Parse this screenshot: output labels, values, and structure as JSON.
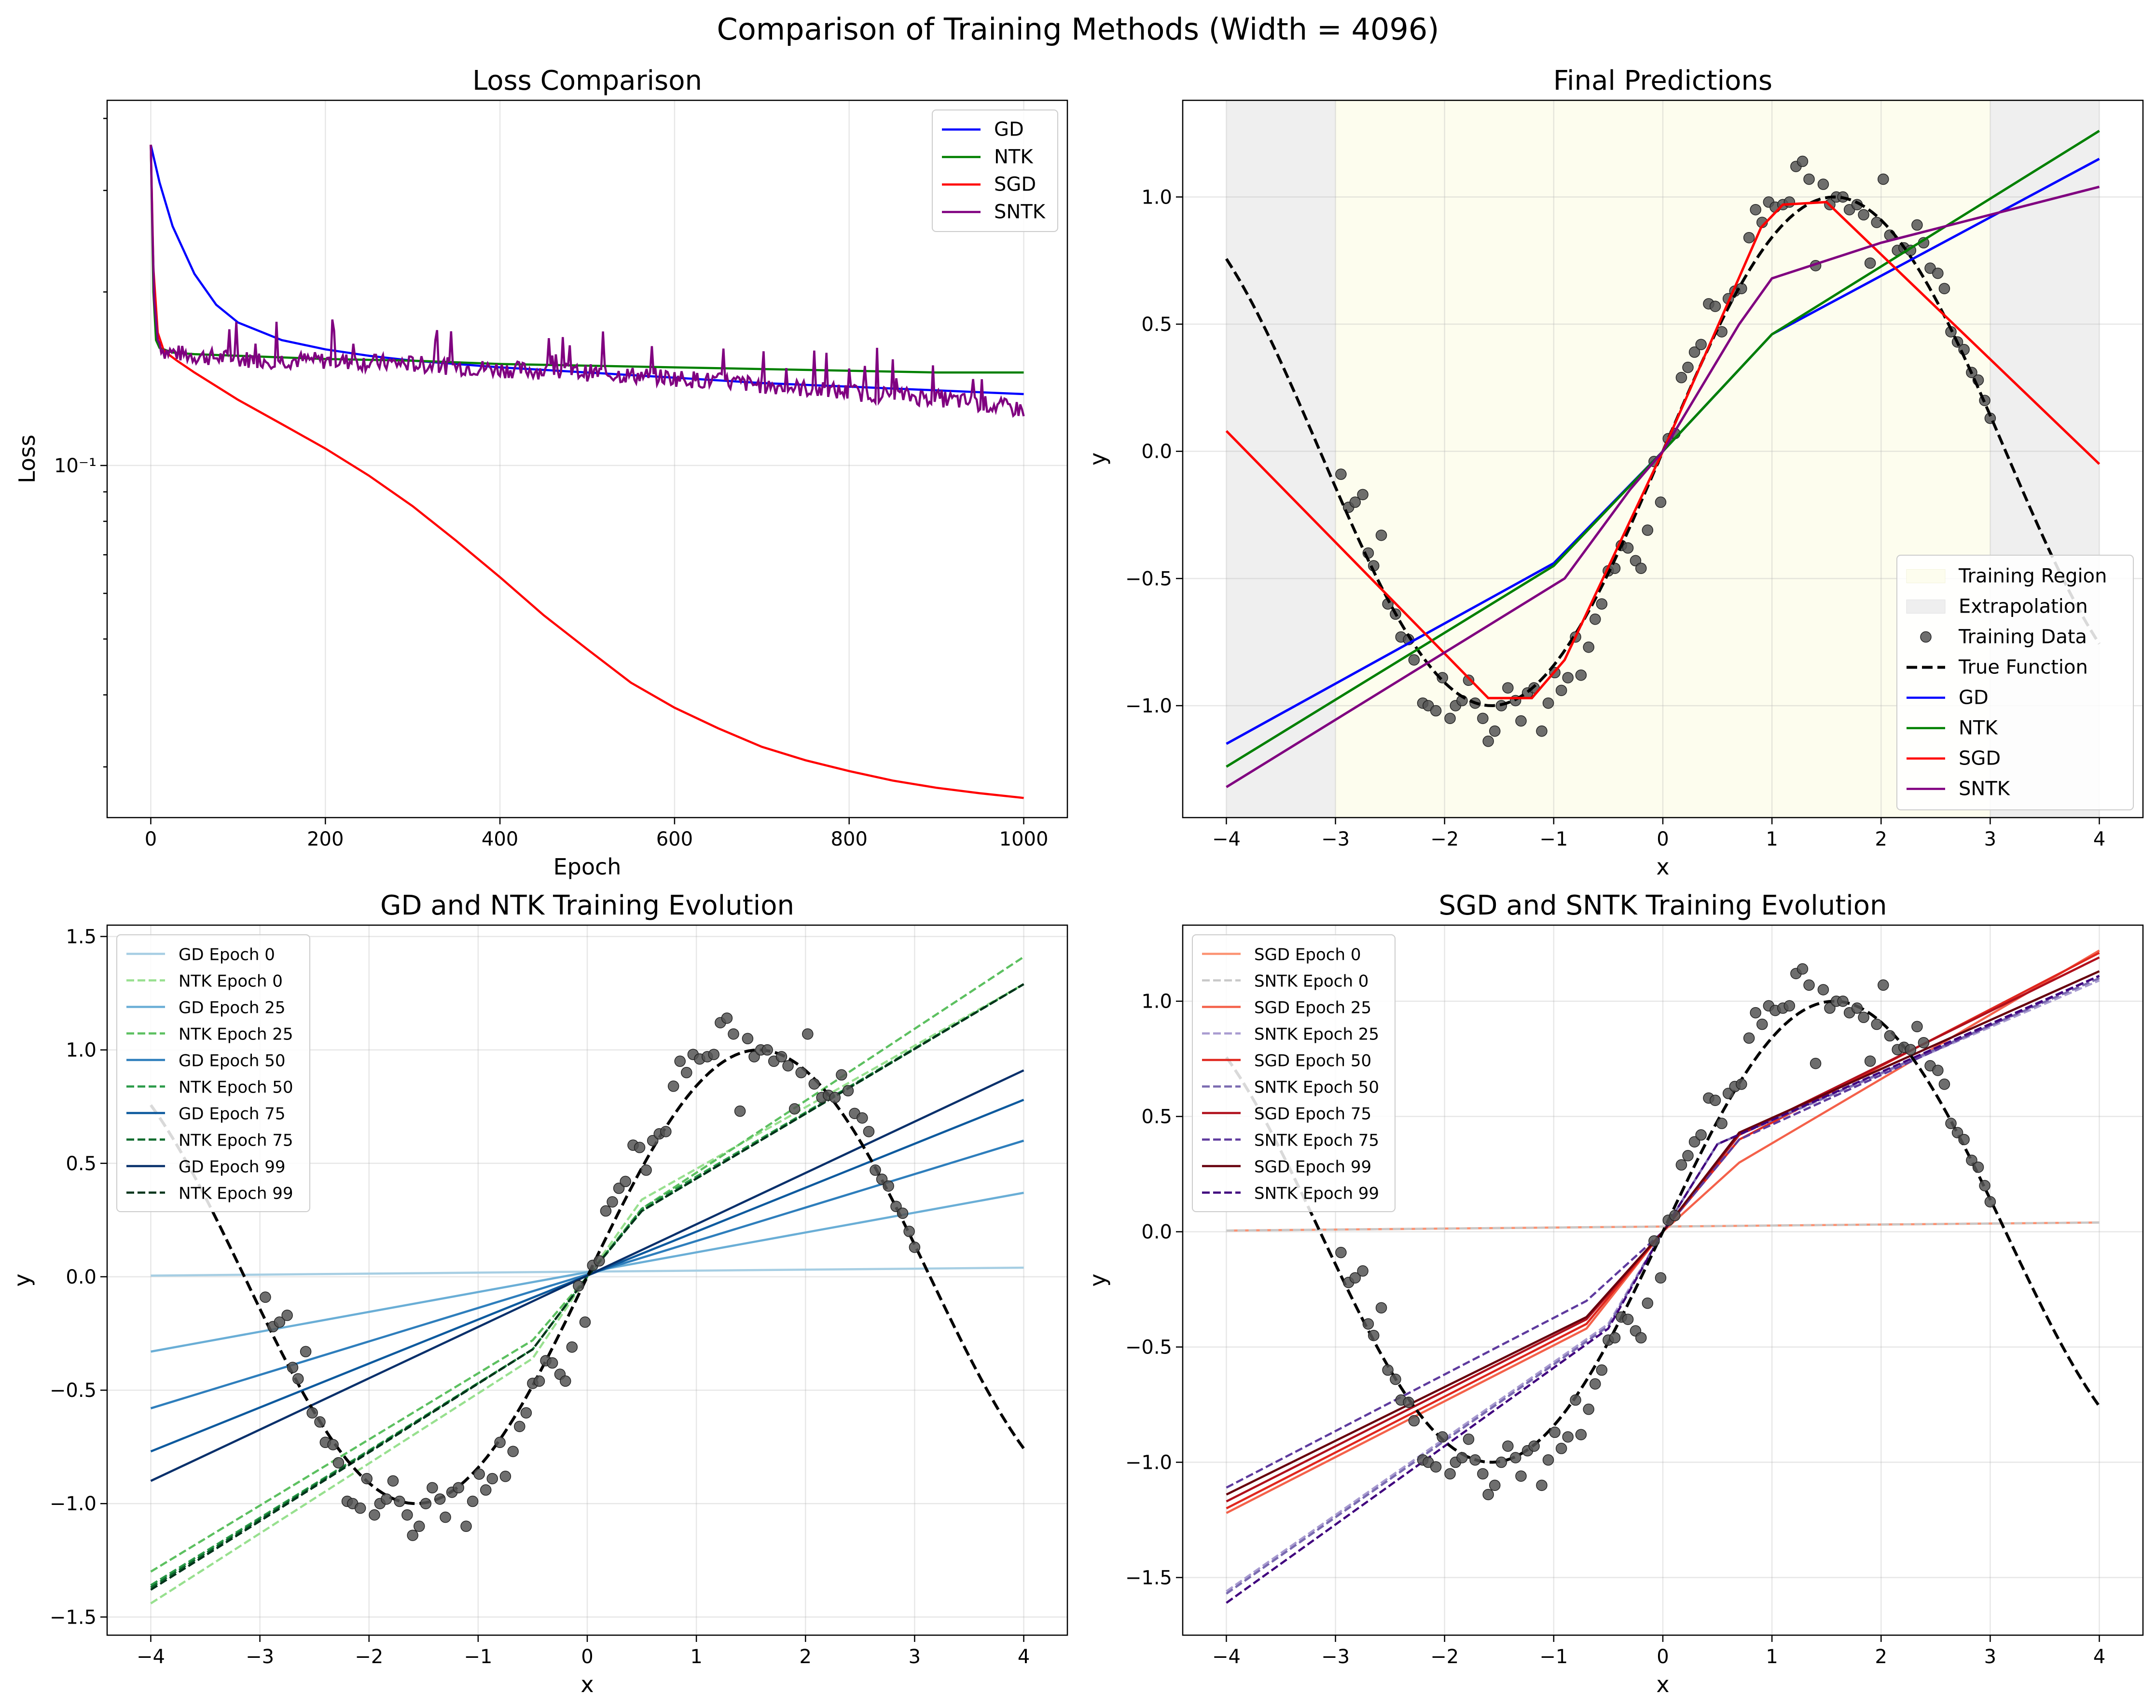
{
  "figure": {
    "title": "Comparison of Training Methods (Width = 4096)"
  },
  "chart_data": [
    {
      "type": "line",
      "title": "Loss Comparison",
      "xlabel": "Epoch",
      "ylabel": "Loss",
      "yscale": "log",
      "xlim": [
        -50,
        1050
      ],
      "ylim": [
        0.0245,
        0.43
      ],
      "xticks": [
        0,
        200,
        400,
        600,
        800,
        1000
      ],
      "xtick_labels": [
        "0",
        "200",
        "400",
        "600",
        "800",
        "1000"
      ],
      "yticks": [
        0.1
      ],
      "ytick_labels": [
        "10⁻¹"
      ],
      "grid": true,
      "legend_position": "top-right",
      "series": [
        {
          "name": "GD",
          "color": "#0000ff",
          "x": [
            0,
            10,
            25,
            50,
            75,
            100,
            150,
            200,
            250,
            300,
            400,
            500,
            600,
            700,
            800,
            900,
            1000
          ],
          "values": [
            0.36,
            0.31,
            0.26,
            0.215,
            0.19,
            0.177,
            0.165,
            0.159,
            0.155,
            0.152,
            0.148,
            0.145,
            0.142,
            0.139,
            0.137,
            0.135,
            0.133
          ]
        },
        {
          "name": "NTK",
          "color": "#008000",
          "x": [
            0,
            3,
            6,
            10,
            25,
            50,
            100,
            200,
            300,
            400,
            500,
            600,
            700,
            800,
            900,
            1000
          ],
          "values": [
            0.36,
            0.2,
            0.165,
            0.16,
            0.157,
            0.156,
            0.155,
            0.153,
            0.152,
            0.15,
            0.149,
            0.148,
            0.147,
            0.146,
            0.145,
            0.145
          ]
        },
        {
          "name": "SGD",
          "color": "#ff0000",
          "x": [
            0,
            3,
            8,
            15,
            30,
            50,
            100,
            150,
            200,
            250,
            300,
            350,
            400,
            450,
            500,
            550,
            600,
            650,
            700,
            750,
            800,
            850,
            900,
            950,
            1000
          ],
          "values": [
            0.36,
            0.22,
            0.17,
            0.158,
            0.152,
            0.145,
            0.13,
            0.118,
            0.107,
            0.096,
            0.085,
            0.074,
            0.064,
            0.055,
            0.048,
            0.042,
            0.038,
            0.035,
            0.0325,
            0.0308,
            0.0295,
            0.0284,
            0.0276,
            0.027,
            0.0265
          ]
        },
        {
          "name": "SNTK",
          "color": "#800080",
          "x": [
            0,
            3,
            8,
            15,
            50,
            100,
            200,
            300,
            400,
            500,
            600,
            700,
            800,
            900,
            950,
            1000
          ],
          "values": [
            0.36,
            0.2,
            0.165,
            0.158,
            0.155,
            0.153,
            0.152,
            0.15,
            0.147,
            0.145,
            0.142,
            0.138,
            0.134,
            0.131,
            0.128,
            0.125
          ]
        }
      ]
    },
    {
      "type": "line",
      "title": "Final Predictions",
      "xlabel": "x",
      "ylabel": "y",
      "xlim": [
        -4.4,
        4.4
      ],
      "ylim": [
        -1.44,
        1.38
      ],
      "xticks": [
        -4,
        -3,
        -2,
        -1,
        0,
        1,
        2,
        3,
        4
      ],
      "xtick_labels": [
        "−4",
        "−3",
        "−2",
        "−1",
        "0",
        "1",
        "2",
        "3",
        "4"
      ],
      "yticks": [
        -1.0,
        -0.5,
        0.0,
        0.5,
        1.0
      ],
      "ytick_labels": [
        "−1.0",
        "−0.5",
        "0.0",
        "0.5",
        "1.0"
      ],
      "grid": true,
      "legend_position": "lower-right",
      "regions": [
        {
          "name": "Training Region",
          "x0": -3,
          "x1": 3,
          "color": "#fdfdee"
        },
        {
          "name": "Extrapolation",
          "x0": -4,
          "x1": -3,
          "color": "#efefef"
        },
        {
          "x0": 3,
          "x1": 4,
          "color": "#efefef"
        }
      ],
      "series": [
        {
          "name": "Training Data",
          "kind": "scatter",
          "ref": "training_points",
          "color": "#555555"
        },
        {
          "name": "True Function",
          "kind": "true",
          "color": "#000000",
          "dash": true
        },
        {
          "name": "GD",
          "color": "#0000ff",
          "x": [
            -4,
            -1,
            0,
            1,
            4
          ],
          "values": [
            -1.15,
            -0.44,
            0.0,
            0.46,
            1.15
          ]
        },
        {
          "name": "NTK",
          "color": "#008000",
          "x": [
            -4,
            -1,
            0,
            1,
            4
          ],
          "values": [
            -1.24,
            -0.45,
            0.0,
            0.46,
            1.26
          ]
        },
        {
          "name": "SGD",
          "color": "#ff0000",
          "x": [
            -4,
            -1.6,
            -1.2,
            -0.9,
            0,
            0.9,
            1.1,
            1.5,
            4
          ],
          "values": [
            0.08,
            -0.97,
            -0.97,
            -0.82,
            0.0,
            0.88,
            0.97,
            0.98,
            -0.05
          ]
        },
        {
          "name": "SNTK",
          "color": "#800080",
          "x": [
            -4,
            -0.9,
            -0.3,
            0,
            0.7,
            1.0,
            2.0,
            3.0,
            4
          ],
          "values": [
            -1.32,
            -0.5,
            -0.15,
            0.0,
            0.5,
            0.68,
            0.82,
            0.93,
            1.04
          ]
        }
      ]
    },
    {
      "type": "line",
      "title": "GD and NTK Training Evolution",
      "xlabel": "x",
      "ylabel": "y",
      "xlim": [
        -4.4,
        4.4
      ],
      "ylim": [
        -1.58,
        1.55
      ],
      "xticks": [
        -4,
        -3,
        -2,
        -1,
        0,
        1,
        2,
        3,
        4
      ],
      "xtick_labels": [
        "−4",
        "−3",
        "−2",
        "−1",
        "0",
        "1",
        "2",
        "3",
        "4"
      ],
      "yticks": [
        -1.5,
        -1.0,
        -0.5,
        0.0,
        0.5,
        1.0,
        1.5
      ],
      "ytick_labels": [
        "−1.5",
        "−1.0",
        "−0.5",
        "0.0",
        "0.5",
        "1.0",
        "1.5"
      ],
      "grid": true,
      "legend_position": "top-left",
      "series": [
        {
          "name": "GD Epoch 0",
          "color": "#a6cee3",
          "x": [
            -4,
            4
          ],
          "values": [
            0.005,
            0.04
          ]
        },
        {
          "name": "NTK Epoch 0",
          "color": "#98e08f",
          "dash": true,
          "x": [
            -4,
            -0.5,
            0,
            0.5,
            4
          ],
          "values": [
            -1.44,
            -0.36,
            0.0,
            0.34,
            1.29
          ]
        },
        {
          "name": "GD Epoch 25",
          "color": "#6aaed6",
          "x": [
            -4,
            4
          ],
          "values": [
            -0.33,
            0.37
          ]
        },
        {
          "name": "NTK Epoch 25",
          "color": "#5cc060",
          "dash": true,
          "x": [
            -4,
            -0.5,
            0,
            0.5,
            4
          ],
          "values": [
            -1.3,
            -0.28,
            0.0,
            0.3,
            1.41
          ]
        },
        {
          "name": "GD Epoch 50",
          "color": "#2e7ebc",
          "x": [
            -4,
            4
          ],
          "values": [
            -0.58,
            0.6
          ]
        },
        {
          "name": "NTK Epoch 50",
          "color": "#2a9a48",
          "dash": true,
          "x": [
            -4,
            -0.5,
            0,
            0.5,
            4
          ],
          "values": [
            -1.36,
            -0.32,
            0.0,
            0.3,
            1.29
          ]
        },
        {
          "name": "GD Epoch 75",
          "color": "#0d5a9e",
          "x": [
            -4,
            4
          ],
          "values": [
            -0.77,
            0.78
          ]
        },
        {
          "name": "NTK Epoch 75",
          "color": "#0b6a2c",
          "dash": true,
          "x": [
            -4,
            -0.5,
            0,
            0.5,
            4
          ],
          "values": [
            -1.37,
            -0.32,
            0.0,
            0.29,
            1.29
          ]
        },
        {
          "name": "GD Epoch 99",
          "color": "#08306b",
          "x": [
            -4,
            4
          ],
          "values": [
            -0.9,
            0.91
          ]
        },
        {
          "name": "NTK Epoch 99",
          "color": "#00331a",
          "dash": true,
          "x": [
            -4,
            -0.5,
            0,
            0.5,
            4
          ],
          "values": [
            -1.38,
            -0.32,
            0.0,
            0.29,
            1.29
          ]
        },
        {
          "kind": "true",
          "color": "#000000",
          "dash": true
        },
        {
          "kind": "scatter",
          "ref": "training_points",
          "color": "#555555"
        }
      ]
    },
    {
      "type": "line",
      "title": "SGD and SNTK Training Evolution",
      "xlabel": "x",
      "ylabel": "y",
      "xlim": [
        -4.4,
        4.4
      ],
      "ylim": [
        -1.75,
        1.33
      ],
      "xticks": [
        -4,
        -3,
        -2,
        -1,
        0,
        1,
        2,
        3,
        4
      ],
      "xtick_labels": [
        "−4",
        "−3",
        "−2",
        "−1",
        "0",
        "1",
        "2",
        "3",
        "4"
      ],
      "yticks": [
        -1.5,
        -1.0,
        -0.5,
        0.0,
        0.5,
        1.0
      ],
      "ytick_labels": [
        "−1.5",
        "−1.0",
        "−0.5",
        "0.0",
        "0.5",
        "1.0"
      ],
      "grid": true,
      "legend_position": "top-left",
      "series": [
        {
          "name": "SGD Epoch 0",
          "color": "#fc9272",
          "x": [
            -4,
            4
          ],
          "values": [
            0.005,
            0.04
          ]
        },
        {
          "name": "SNTK Epoch 0",
          "color": "#c8c8c8",
          "dash": true,
          "x": [
            -4,
            4
          ],
          "values": [
            0.005,
            0.04
          ]
        },
        {
          "name": "SGD Epoch 25",
          "color": "#f4614a",
          "x": [
            -4,
            -0.7,
            0,
            0.7,
            4
          ],
          "values": [
            -1.22,
            -0.42,
            0.0,
            0.3,
            1.22
          ]
        },
        {
          "name": "SNTK Epoch 25",
          "color": "#a89bd0",
          "dash": true,
          "x": [
            -4,
            -0.5,
            0,
            0.5,
            4
          ],
          "values": [
            -1.56,
            -0.4,
            0.0,
            0.38,
            1.09
          ]
        },
        {
          "name": "SGD Epoch 50",
          "color": "#e0271e",
          "x": [
            -4,
            -0.7,
            0,
            0.7,
            4
          ],
          "values": [
            -1.2,
            -0.4,
            0.0,
            0.4,
            1.21
          ]
        },
        {
          "name": "SNTK Epoch 50",
          "color": "#7a6ab0",
          "dash": true,
          "x": [
            -4,
            -0.5,
            0,
            0.5,
            4
          ],
          "values": [
            -1.57,
            -0.41,
            0.0,
            0.38,
            1.1
          ]
        },
        {
          "name": "SGD Epoch 75",
          "color": "#b0101c",
          "x": [
            -4,
            -0.7,
            0,
            0.7,
            4
          ],
          "values": [
            -1.17,
            -0.38,
            0.0,
            0.42,
            1.19
          ]
        },
        {
          "name": "SNTK Epoch 75",
          "color": "#5e3a9e",
          "dash": true,
          "x": [
            -4,
            -0.7,
            0,
            0.7,
            4
          ],
          "values": [
            -1.11,
            -0.3,
            0.0,
            0.4,
            1.11
          ]
        },
        {
          "name": "SGD Epoch 99",
          "color": "#67000d",
          "x": [
            -4,
            -0.7,
            0,
            0.7,
            4
          ],
          "values": [
            -1.14,
            -0.37,
            0.0,
            0.43,
            1.13
          ]
        },
        {
          "name": "SNTK Epoch 99",
          "color": "#3f007d",
          "dash": true,
          "x": [
            -4,
            -0.5,
            0,
            0.5,
            4
          ],
          "values": [
            -1.61,
            -0.42,
            0.0,
            0.38,
            1.11
          ]
        },
        {
          "kind": "true",
          "color": "#000000",
          "dash": true
        },
        {
          "kind": "scatter",
          "ref": "training_points",
          "color": "#555555"
        }
      ]
    }
  ],
  "training_points": {
    "x": [
      -2.95,
      -2.88,
      -2.82,
      -2.75,
      -2.7,
      -2.65,
      -2.58,
      -2.52,
      -2.45,
      -2.4,
      -2.33,
      -2.28,
      -2.2,
      -2.15,
      -2.08,
      -2.02,
      -1.95,
      -1.9,
      -1.84,
      -1.78,
      -1.72,
      -1.65,
      -1.6,
      -1.54,
      -1.48,
      -1.42,
      -1.35,
      -1.3,
      -1.24,
      -1.18,
      -1.11,
      -1.05,
      -0.99,
      -0.93,
      -0.87,
      -0.8,
      -0.75,
      -0.68,
      -0.62,
      -0.56,
      -0.5,
      -0.44,
      -0.38,
      -0.32,
      -0.25,
      -0.2,
      -0.14,
      -0.08,
      -0.02,
      0.05,
      0.11,
      0.17,
      0.23,
      0.29,
      0.35,
      0.42,
      0.48,
      0.54,
      0.6,
      0.66,
      0.72,
      0.79,
      0.85,
      0.91,
      0.97,
      1.03,
      1.1,
      1.16,
      1.22,
      1.28,
      1.34,
      1.4,
      1.47,
      1.53,
      1.59,
      1.65,
      1.71,
      1.78,
      1.84,
      1.9,
      1.96,
      2.02,
      2.08,
      2.15,
      2.21,
      2.27,
      2.33,
      2.39,
      2.45,
      2.52,
      2.58,
      2.64,
      2.7,
      2.76,
      2.83,
      2.89,
      2.95,
      3.0
    ],
    "y": [
      -0.09,
      -0.22,
      -0.2,
      -0.17,
      -0.4,
      -0.45,
      -0.33,
      -0.6,
      -0.64,
      -0.73,
      -0.74,
      -0.82,
      -0.99,
      -1.0,
      -1.02,
      -0.89,
      -1.05,
      -1.0,
      -0.98,
      -0.9,
      -0.99,
      -1.05,
      -1.14,
      -1.1,
      -1.0,
      -0.93,
      -0.98,
      -1.06,
      -0.95,
      -0.93,
      -1.1,
      -0.99,
      -0.87,
      -0.94,
      -0.89,
      -0.73,
      -0.88,
      -0.77,
      -0.66,
      -0.6,
      -0.47,
      -0.46,
      -0.37,
      -0.38,
      -0.43,
      -0.46,
      -0.31,
      -0.04,
      -0.2,
      0.05,
      0.07,
      0.29,
      0.33,
      0.39,
      0.42,
      0.58,
      0.57,
      0.47,
      0.6,
      0.63,
      0.64,
      0.84,
      0.95,
      0.9,
      0.98,
      0.96,
      0.97,
      0.98,
      1.12,
      1.14,
      1.07,
      0.73,
      1.05,
      0.97,
      1.0,
      1.0,
      0.95,
      0.97,
      0.93,
      0.74,
      0.9,
      1.07,
      0.85,
      0.79,
      0.8,
      0.79,
      0.89,
      0.82,
      0.72,
      0.7,
      0.64,
      0.47,
      0.43,
      0.4,
      0.31,
      0.28,
      0.2,
      0.13
    ]
  }
}
